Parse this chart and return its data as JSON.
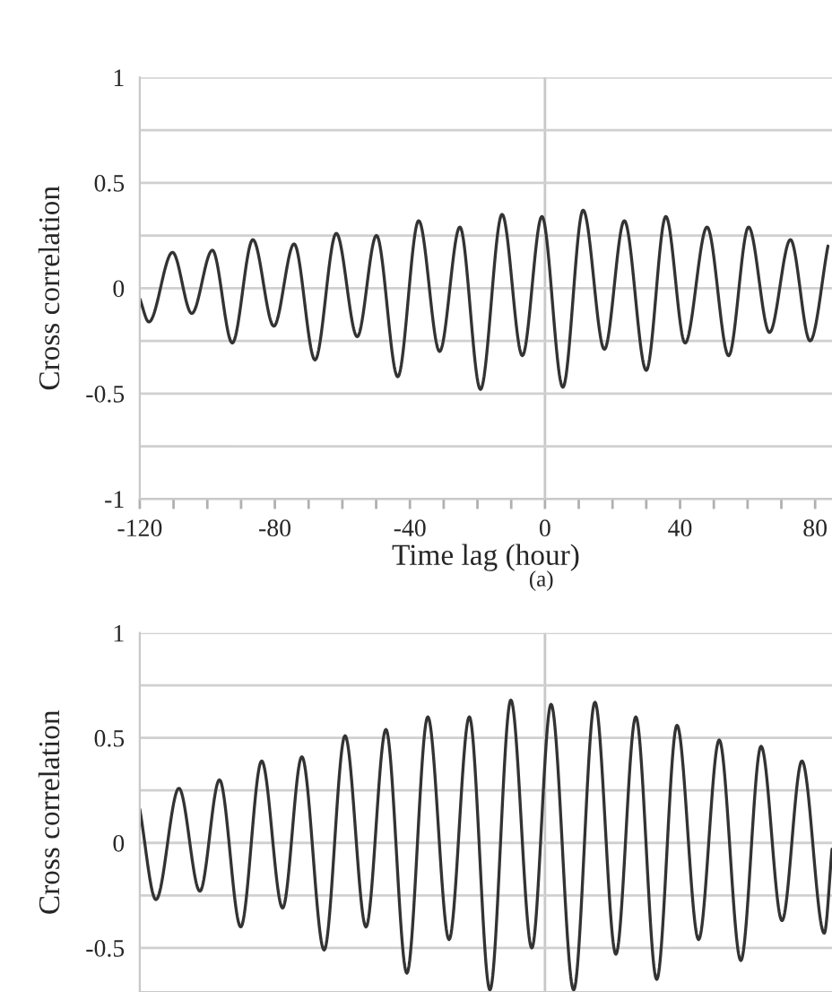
{
  "chart_data": [
    {
      "type": "line",
      "xlabel": "Time lag (hour)",
      "ylabel": "Cross correlation",
      "annotations": [
        "(a)"
      ],
      "xlim": [
        -120,
        85
      ],
      "ylim": [
        -1,
        1
      ],
      "xticks": [
        -120,
        {
          "value": -110,
          "label": null
        },
        {
          "value": -100,
          "label": null
        },
        {
          "value": -90,
          "label": null
        },
        -80,
        {
          "value": -70,
          "label": null
        },
        {
          "value": -60,
          "label": null
        },
        {
          "value": -50,
          "label": null
        },
        -40,
        {
          "value": -30,
          "label": null
        },
        {
          "value": -20,
          "label": null
        },
        {
          "value": -10,
          "label": null
        },
        0,
        {
          "value": 10,
          "label": null
        },
        {
          "value": 20,
          "label": null
        },
        {
          "value": 30,
          "label": null
        },
        40,
        {
          "value": 50,
          "label": null
        },
        {
          "value": 60,
          "label": null
        },
        {
          "value": 70,
          "label": null
        },
        80
      ],
      "yticks": [
        -1,
        {
          "value": -0.75,
          "label": null
        },
        -0.5,
        {
          "value": -0.25,
          "label": null
        },
        0,
        {
          "value": 0.25,
          "label": null
        },
        0.5,
        {
          "value": 0.75,
          "label": null
        },
        1
      ],
      "grid": "y",
      "legend": false,
      "ref_lines": [
        {
          "axis": "x",
          "value": 0,
          "color": "#c8c8c8"
        }
      ],
      "series": [
        {
          "color": "#333333",
          "x": [
            -120,
            -117.3,
            -110.3,
            -104.6,
            -98.5,
            -92.6,
            -86.5,
            -80.3,
            -74.3,
            -68.1,
            -61.8,
            -55.6,
            -49.9,
            -43.6,
            -37.4,
            -31.2,
            -25.2,
            -19.1,
            -12.7,
            -6.7,
            -0.9,
            5.3,
            11.3,
            17.6,
            23.5,
            30.0,
            35.8,
            41.5,
            48.0,
            54.4,
            60.3,
            66.5,
            72.7,
            78.5,
            83.8
          ],
          "values": [
            -0.05,
            -0.16,
            0.17,
            -0.12,
            0.18,
            -0.26,
            0.23,
            -0.18,
            0.21,
            -0.34,
            0.26,
            -0.23,
            0.25,
            -0.42,
            0.32,
            -0.3,
            0.29,
            -0.48,
            0.35,
            -0.32,
            0.34,
            -0.47,
            0.37,
            -0.29,
            0.32,
            -0.39,
            0.34,
            -0.26,
            0.29,
            -0.32,
            0.29,
            -0.21,
            0.23,
            -0.25,
            0.2
          ]
        }
      ]
    },
    {
      "type": "line",
      "ylabel": "Cross correlation",
      "tick_labels": "y",
      "xlim": [
        -120,
        85
      ],
      "ylim": [
        -0.71,
        1
      ],
      "yticks": [
        -0.5,
        {
          "value": -0.25,
          "label": null
        },
        0,
        {
          "value": 0.25,
          "label": null
        },
        0.5,
        {
          "value": 0.75,
          "label": null
        },
        1
      ],
      "grid": "y",
      "legend": false,
      "ref_lines": [
        {
          "axis": "x",
          "value": 0,
          "color": "#c8c8c8"
        }
      ],
      "series": [
        {
          "color": "#333333",
          "x": [
            -120,
            -115.2,
            -108.4,
            -102.2,
            -96.4,
            -90.1,
            -83.9,
            -77.7,
            -72.0,
            -65.4,
            -59.2,
            -53.0,
            -47.1,
            -40.9,
            -34.7,
            -28.4,
            -22.4,
            -16.3,
            -10.1,
            -3.9,
            1.8,
            8.5,
            14.8,
            21.0,
            26.9,
            33.1,
            39.1,
            45.5,
            51.6,
            58.0,
            64.0,
            70.2,
            76.1,
            82.7,
            85.0
          ],
          "values": [
            0.16,
            -0.27,
            0.26,
            -0.23,
            0.3,
            -0.4,
            0.39,
            -0.31,
            0.41,
            -0.51,
            0.51,
            -0.4,
            0.54,
            -0.62,
            0.6,
            -0.46,
            0.6,
            -0.7,
            0.68,
            -0.5,
            0.66,
            -0.7,
            0.67,
            -0.53,
            0.6,
            -0.65,
            0.56,
            -0.46,
            0.49,
            -0.56,
            0.46,
            -0.37,
            0.39,
            -0.43,
            -0.03
          ]
        }
      ]
    }
  ]
}
